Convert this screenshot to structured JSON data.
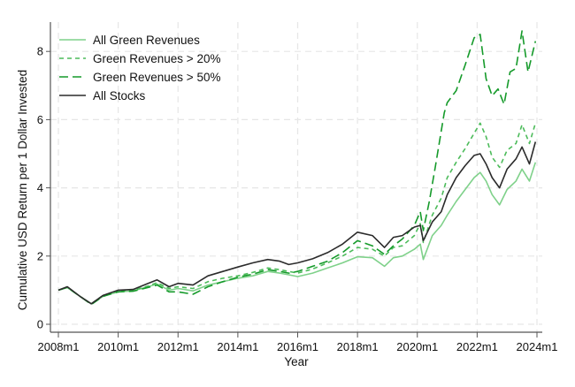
{
  "chart_data": {
    "type": "line",
    "title": "",
    "xlabel": "Year",
    "ylabel": "Cumulative USD Return per 1 Dollar Invested",
    "xlim": [
      2008.0,
      2024.0
    ],
    "ylim": [
      0,
      8.8
    ],
    "grid": true,
    "legend_position": "top-left",
    "x_ticks": [
      {
        "value": 2008,
        "label": "2008m1"
      },
      {
        "value": 2010,
        "label": "2010m1"
      },
      {
        "value": 2012,
        "label": "2012m1"
      },
      {
        "value": 2014,
        "label": "2014m1"
      },
      {
        "value": 2016,
        "label": "2016m1"
      },
      {
        "value": 2018,
        "label": "2018m1"
      },
      {
        "value": 2020,
        "label": "2020m1"
      },
      {
        "value": 2022,
        "label": "2022m1"
      },
      {
        "value": 2024,
        "label": "2024m1"
      }
    ],
    "y_ticks": [
      {
        "value": 0,
        "label": "0"
      },
      {
        "value": 2,
        "label": "2"
      },
      {
        "value": 4,
        "label": "4"
      },
      {
        "value": 6,
        "label": "6"
      },
      {
        "value": 8,
        "label": "8"
      }
    ],
    "series": [
      {
        "name": "All Green Revenues",
        "color": "#7fd18a",
        "dash": "solid",
        "x": [
          2008.0,
          2008.3,
          2008.75,
          2009.1,
          2009.5,
          2010.0,
          2010.5,
          2011.0,
          2011.3,
          2011.7,
          2012.0,
          2012.5,
          2013.0,
          2013.5,
          2014.0,
          2014.5,
          2015.0,
          2015.4,
          2015.7,
          2016.0,
          2016.5,
          2017.0,
          2017.5,
          2018.0,
          2018.5,
          2018.9,
          2019.2,
          2019.5,
          2019.9,
          2020.1,
          2020.2,
          2020.5,
          2020.8,
          2021.0,
          2021.3,
          2021.6,
          2021.9,
          2022.1,
          2022.3,
          2022.5,
          2022.75,
          2023.0,
          2023.3,
          2023.5,
          2023.75,
          2023.95
        ],
        "values": [
          1.0,
          1.08,
          0.8,
          0.6,
          0.82,
          0.95,
          0.98,
          1.1,
          1.18,
          1.0,
          1.05,
          0.98,
          1.15,
          1.25,
          1.35,
          1.42,
          1.55,
          1.5,
          1.45,
          1.4,
          1.5,
          1.65,
          1.8,
          1.98,
          1.95,
          1.7,
          1.95,
          2.0,
          2.2,
          2.35,
          1.9,
          2.6,
          2.9,
          3.2,
          3.6,
          3.95,
          4.3,
          4.45,
          4.2,
          3.8,
          3.5,
          3.95,
          4.2,
          4.55,
          4.2,
          4.75
        ]
      },
      {
        "name": "Green Revenues > 20%",
        "color": "#4cbb5a",
        "dash": "short",
        "x": [
          2008.0,
          2008.3,
          2008.75,
          2009.1,
          2009.5,
          2010.0,
          2010.5,
          2011.0,
          2011.3,
          2011.7,
          2012.0,
          2012.5,
          2013.0,
          2013.5,
          2014.0,
          2014.5,
          2015.0,
          2015.4,
          2015.7,
          2016.0,
          2016.5,
          2017.0,
          2017.5,
          2018.0,
          2018.5,
          2018.9,
          2019.2,
          2019.5,
          2019.9,
          2020.1,
          2020.2,
          2020.5,
          2020.8,
          2021.0,
          2021.3,
          2021.6,
          2021.9,
          2022.1,
          2022.3,
          2022.5,
          2022.75,
          2023.0,
          2023.3,
          2023.5,
          2023.75,
          2023.95
        ],
        "values": [
          1.0,
          1.08,
          0.8,
          0.6,
          0.85,
          0.97,
          1.0,
          1.12,
          1.22,
          1.05,
          1.1,
          1.05,
          1.25,
          1.35,
          1.42,
          1.52,
          1.65,
          1.6,
          1.55,
          1.5,
          1.62,
          1.8,
          2.0,
          2.25,
          2.2,
          2.0,
          2.25,
          2.3,
          2.6,
          2.95,
          2.4,
          3.2,
          3.7,
          4.3,
          4.75,
          5.15,
          5.6,
          5.9,
          5.5,
          4.9,
          4.6,
          5.1,
          5.3,
          5.85,
          5.3,
          5.9
        ]
      },
      {
        "name": "Green Revenues > 50%",
        "color": "#159a2a",
        "dash": "long",
        "x": [
          2008.0,
          2008.3,
          2008.75,
          2009.1,
          2009.5,
          2010.0,
          2010.5,
          2011.0,
          2011.3,
          2011.7,
          2012.0,
          2012.5,
          2013.0,
          2013.5,
          2014.0,
          2014.5,
          2015.0,
          2015.4,
          2015.7,
          2016.0,
          2016.5,
          2017.0,
          2017.5,
          2018.0,
          2018.5,
          2018.9,
          2019.2,
          2019.5,
          2019.9,
          2020.1,
          2020.2,
          2020.4,
          2020.6,
          2020.9,
          2021.0,
          2021.3,
          2021.6,
          2021.9,
          2022.1,
          2022.3,
          2022.5,
          2022.7,
          2022.9,
          2023.1,
          2023.3,
          2023.5,
          2023.7,
          2023.95
        ],
        "values": [
          1.0,
          1.08,
          0.8,
          0.58,
          0.82,
          0.95,
          0.97,
          1.08,
          1.15,
          0.95,
          0.95,
          0.88,
          1.1,
          1.25,
          1.38,
          1.47,
          1.6,
          1.55,
          1.5,
          1.55,
          1.7,
          1.85,
          2.1,
          2.45,
          2.3,
          2.05,
          2.3,
          2.5,
          2.9,
          3.3,
          2.75,
          3.6,
          4.6,
          6.2,
          6.5,
          6.85,
          7.6,
          8.4,
          8.5,
          7.2,
          6.7,
          6.9,
          6.45,
          7.4,
          7.5,
          8.6,
          7.4,
          8.3
        ]
      },
      {
        "name": "All Stocks",
        "color": "#2b2b2b",
        "dash": "solid",
        "x": [
          2008.0,
          2008.3,
          2008.75,
          2009.1,
          2009.5,
          2010.0,
          2010.5,
          2011.0,
          2011.3,
          2011.7,
          2012.0,
          2012.5,
          2013.0,
          2013.5,
          2014.0,
          2014.5,
          2015.0,
          2015.4,
          2015.7,
          2016.0,
          2016.5,
          2017.0,
          2017.5,
          2018.0,
          2018.5,
          2018.9,
          2019.2,
          2019.5,
          2019.9,
          2020.1,
          2020.2,
          2020.5,
          2020.8,
          2021.0,
          2021.3,
          2021.6,
          2021.9,
          2022.1,
          2022.3,
          2022.5,
          2022.75,
          2023.0,
          2023.3,
          2023.5,
          2023.75,
          2023.95
        ],
        "values": [
          1.0,
          1.1,
          0.8,
          0.6,
          0.85,
          1.0,
          1.02,
          1.2,
          1.3,
          1.1,
          1.2,
          1.15,
          1.42,
          1.55,
          1.68,
          1.8,
          1.9,
          1.85,
          1.75,
          1.8,
          1.92,
          2.1,
          2.35,
          2.7,
          2.6,
          2.25,
          2.55,
          2.6,
          2.85,
          2.9,
          2.45,
          3.0,
          3.3,
          3.8,
          4.3,
          4.65,
          4.95,
          5.0,
          4.7,
          4.3,
          4.0,
          4.55,
          4.85,
          5.2,
          4.7,
          5.35
        ]
      }
    ]
  }
}
